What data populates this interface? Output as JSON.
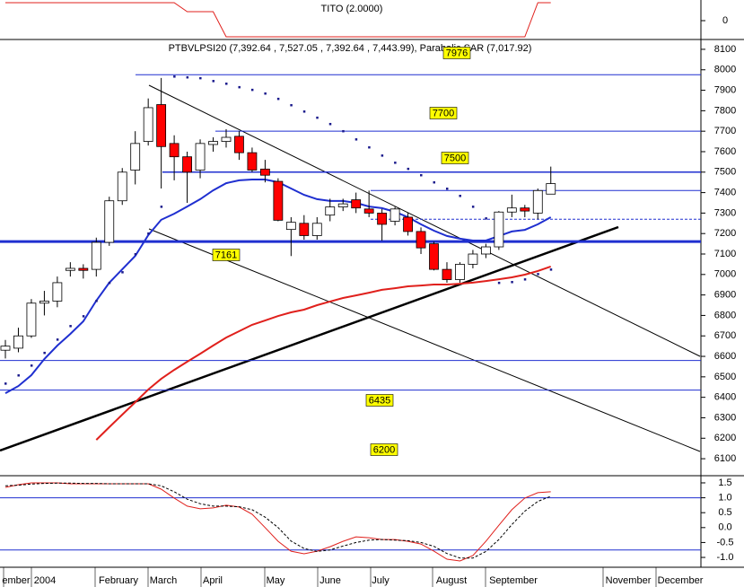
{
  "chart_data": [
    {
      "type": "line",
      "title": "TITO (2.0000)",
      "ylim": [
        -2.1,
        2.3
      ],
      "yticks": [
        0
      ],
      "series": [
        {
          "color": "#e0201c",
          "values": [
            2,
            2,
            2,
            2,
            2,
            2,
            2,
            2,
            2,
            2,
            2,
            2,
            2,
            2,
            1,
            1,
            1,
            -1.8,
            -1.8,
            -1.8,
            -1.8,
            -1.8,
            -1.8,
            -1.8,
            -1.8,
            -1.8,
            -1.8,
            -1.8,
            -1.8,
            -1.8,
            -1.8,
            -1.8,
            -1.8,
            -1.8,
            -1.8,
            -1.8,
            -1.8,
            -1.8,
            -1.8,
            -1.8,
            -1.8,
            2,
            2
          ]
        }
      ]
    },
    {
      "type": "candlestick",
      "title": "PTBVLPSI20 (7,392.64 , 7,527.05 , 7,392.64 , 7,443.99), Parabolic SAR (7,017.92)",
      "ylim": [
        6017,
        8148
      ],
      "yticks": [
        8100,
        8000,
        7900,
        7800,
        7700,
        7600,
        7500,
        7400,
        7300,
        7200,
        7100,
        7000,
        6900,
        6800,
        6700,
        6600,
        6500,
        6400,
        6300,
        6200,
        6100
      ],
      "x_labels": [
        "ember",
        "2004",
        "February",
        "March",
        "April",
        "May",
        "June",
        "July",
        "August",
        "September",
        "November",
        "December"
      ],
      "up_color": "#ffffff",
      "down_color": "#ff0000",
      "open": [
        6630,
        6640,
        6700,
        6860,
        6870,
        7020,
        7030,
        7025,
        7157,
        7360,
        7510,
        7650,
        7830,
        7640,
        7575,
        7510,
        7635,
        7650,
        7675,
        7595,
        7515,
        7455,
        7220,
        7250,
        7190,
        7290,
        7330,
        7365,
        7320,
        7300,
        7260,
        7280,
        7210,
        7150,
        7025,
        6975,
        7050,
        7100,
        7135,
        7305,
        7325,
        7300,
        7392.64
      ],
      "high": [
        6680,
        6740,
        6880,
        6920,
        6990,
        7060,
        7050,
        7180,
        7380,
        7520,
        7700,
        7860,
        7960,
        7680,
        7600,
        7660,
        7670,
        7710,
        7700,
        7620,
        7560,
        7470,
        7280,
        7290,
        7280,
        7370,
        7370,
        7400,
        7410,
        7320,
        7330,
        7300,
        7230,
        7160,
        7060,
        7060,
        7120,
        7150,
        7310,
        7390,
        7340,
        7420,
        7527.05
      ],
      "low": [
        6590,
        6620,
        6690,
        6800,
        6840,
        6990,
        6980,
        6990,
        7140,
        7340,
        7440,
        7630,
        7420,
        7460,
        7350,
        7470,
        7600,
        7620,
        7560,
        7500,
        7450,
        7260,
        7090,
        7170,
        7170,
        7260,
        7310,
        7300,
        7280,
        7165,
        7240,
        7190,
        7100,
        7020,
        6960,
        6960,
        7030,
        7080,
        7120,
        7280,
        7280,
        7270,
        7392.64
      ],
      "close": [
        6650,
        6700,
        6860,
        6870,
        6960,
        7030,
        7020,
        7157,
        7360,
        7500,
        7640,
        7815,
        7625,
        7575,
        7500,
        7640,
        7650,
        7670,
        7595,
        7510,
        7485,
        7265,
        7255,
        7190,
        7250,
        7330,
        7345,
        7325,
        7300,
        7245,
        7320,
        7210,
        7130,
        7025,
        6975,
        7050,
        7100,
        7135,
        7305,
        7325,
        7310,
        7410,
        7443.99
      ],
      "series": [
        {
          "style": "line",
          "color": "#1f2fd0",
          "values": [
            6420,
            6455,
            6508,
            6587,
            6653,
            6710,
            6771,
            6872,
            6960,
            7025,
            7091,
            7192,
            7267,
            7297,
            7332,
            7368,
            7411,
            7446,
            7460,
            7464,
            7464,
            7451,
            7420,
            7389,
            7368,
            7359,
            7359,
            7350,
            7332,
            7324,
            7306,
            7280,
            7245,
            7214,
            7188,
            7175,
            7166,
            7166,
            7188,
            7210,
            7218,
            7245,
            7280
          ]
        },
        {
          "style": "line",
          "color": "#e0201c",
          "values": [
            null,
            null,
            null,
            null,
            null,
            null,
            null,
            6192,
            6254,
            6315,
            6376,
            6438,
            6490,
            6534,
            6574,
            6613,
            6653,
            6692,
            6723,
            6754,
            6775,
            6797,
            6815,
            6828,
            6850,
            6868,
            6885,
            6898,
            6911,
            6925,
            6933,
            6942,
            6946,
            6951,
            6951,
            6955,
            6960,
            6968,
            6977,
            6986,
            6999,
            7017,
            7039
          ]
        },
        {
          "style": "dots",
          "color": "#1a1a8c",
          "values": [
            6468,
            6508,
            6556,
            6618,
            6683,
            6749,
            6797,
            6872,
            6960,
            7012,
            7100,
            7201,
            7332,
            7968,
            7964,
            7960,
            7946,
            7933,
            7916,
            7903,
            7885,
            7859,
            7828,
            7797,
            7767,
            7736,
            7701,
            7661,
            7622,
            7582,
            7547,
            7517,
            7486,
            7451,
            7420,
            7385,
            7332,
            7275,
            6960,
            6964,
            6977,
            7003,
            7025
          ]
        }
      ],
      "hlines": [
        7976,
        7700,
        7500,
        7410,
        7270,
        7161,
        6580,
        6435
      ],
      "hline_color": "#1f2fd0",
      "hline_labels": [
        7976,
        7700,
        7500,
        7161,
        6435,
        6200
      ]
    },
    {
      "type": "line",
      "ylim": [
        -1.33,
        1.74
      ],
      "yticks": [
        1.5,
        {
          "value": 1.0,
          "label": "1.0"
        },
        0.5,
        {
          "value": 0.0,
          "label": "0.0"
        },
        -0.5,
        {
          "value": -1.0,
          "label": "-1.0"
        }
      ],
      "hlines": [
        1.0,
        -0.75
      ],
      "hline_color": "#1f2fd0",
      "series": [
        {
          "color": "#e0201c",
          "dashed": false,
          "values": [
            1.35,
            1.44,
            1.5,
            1.5,
            1.5,
            1.47,
            1.47,
            1.47,
            1.47,
            1.47,
            1.47,
            1.47,
            1.29,
            0.99,
            0.72,
            0.63,
            0.66,
            0.75,
            0.69,
            0.45,
            0.0,
            -0.46,
            -0.79,
            -0.88,
            -0.79,
            -0.64,
            -0.46,
            -0.31,
            -0.34,
            -0.4,
            -0.4,
            -0.46,
            -0.55,
            -0.79,
            -1.06,
            -1.12,
            -0.94,
            -0.46,
            0.08,
            0.6,
            0.99,
            1.17,
            1.2
          ]
        },
        {
          "color": "#000000",
          "dashed": true,
          "values": [
            1.4,
            1.42,
            1.46,
            1.48,
            1.49,
            1.49,
            1.48,
            1.48,
            1.47,
            1.47,
            1.47,
            1.47,
            1.4,
            1.2,
            0.95,
            0.8,
            0.72,
            0.72,
            0.7,
            0.6,
            0.35,
            0.0,
            -0.45,
            -0.7,
            -0.8,
            -0.75,
            -0.62,
            -0.5,
            -0.42,
            -0.4,
            -0.42,
            -0.44,
            -0.5,
            -0.63,
            -0.87,
            -1.02,
            -1.02,
            -0.8,
            -0.4,
            0.1,
            0.55,
            0.88,
            1.05
          ]
        }
      ]
    }
  ]
}
